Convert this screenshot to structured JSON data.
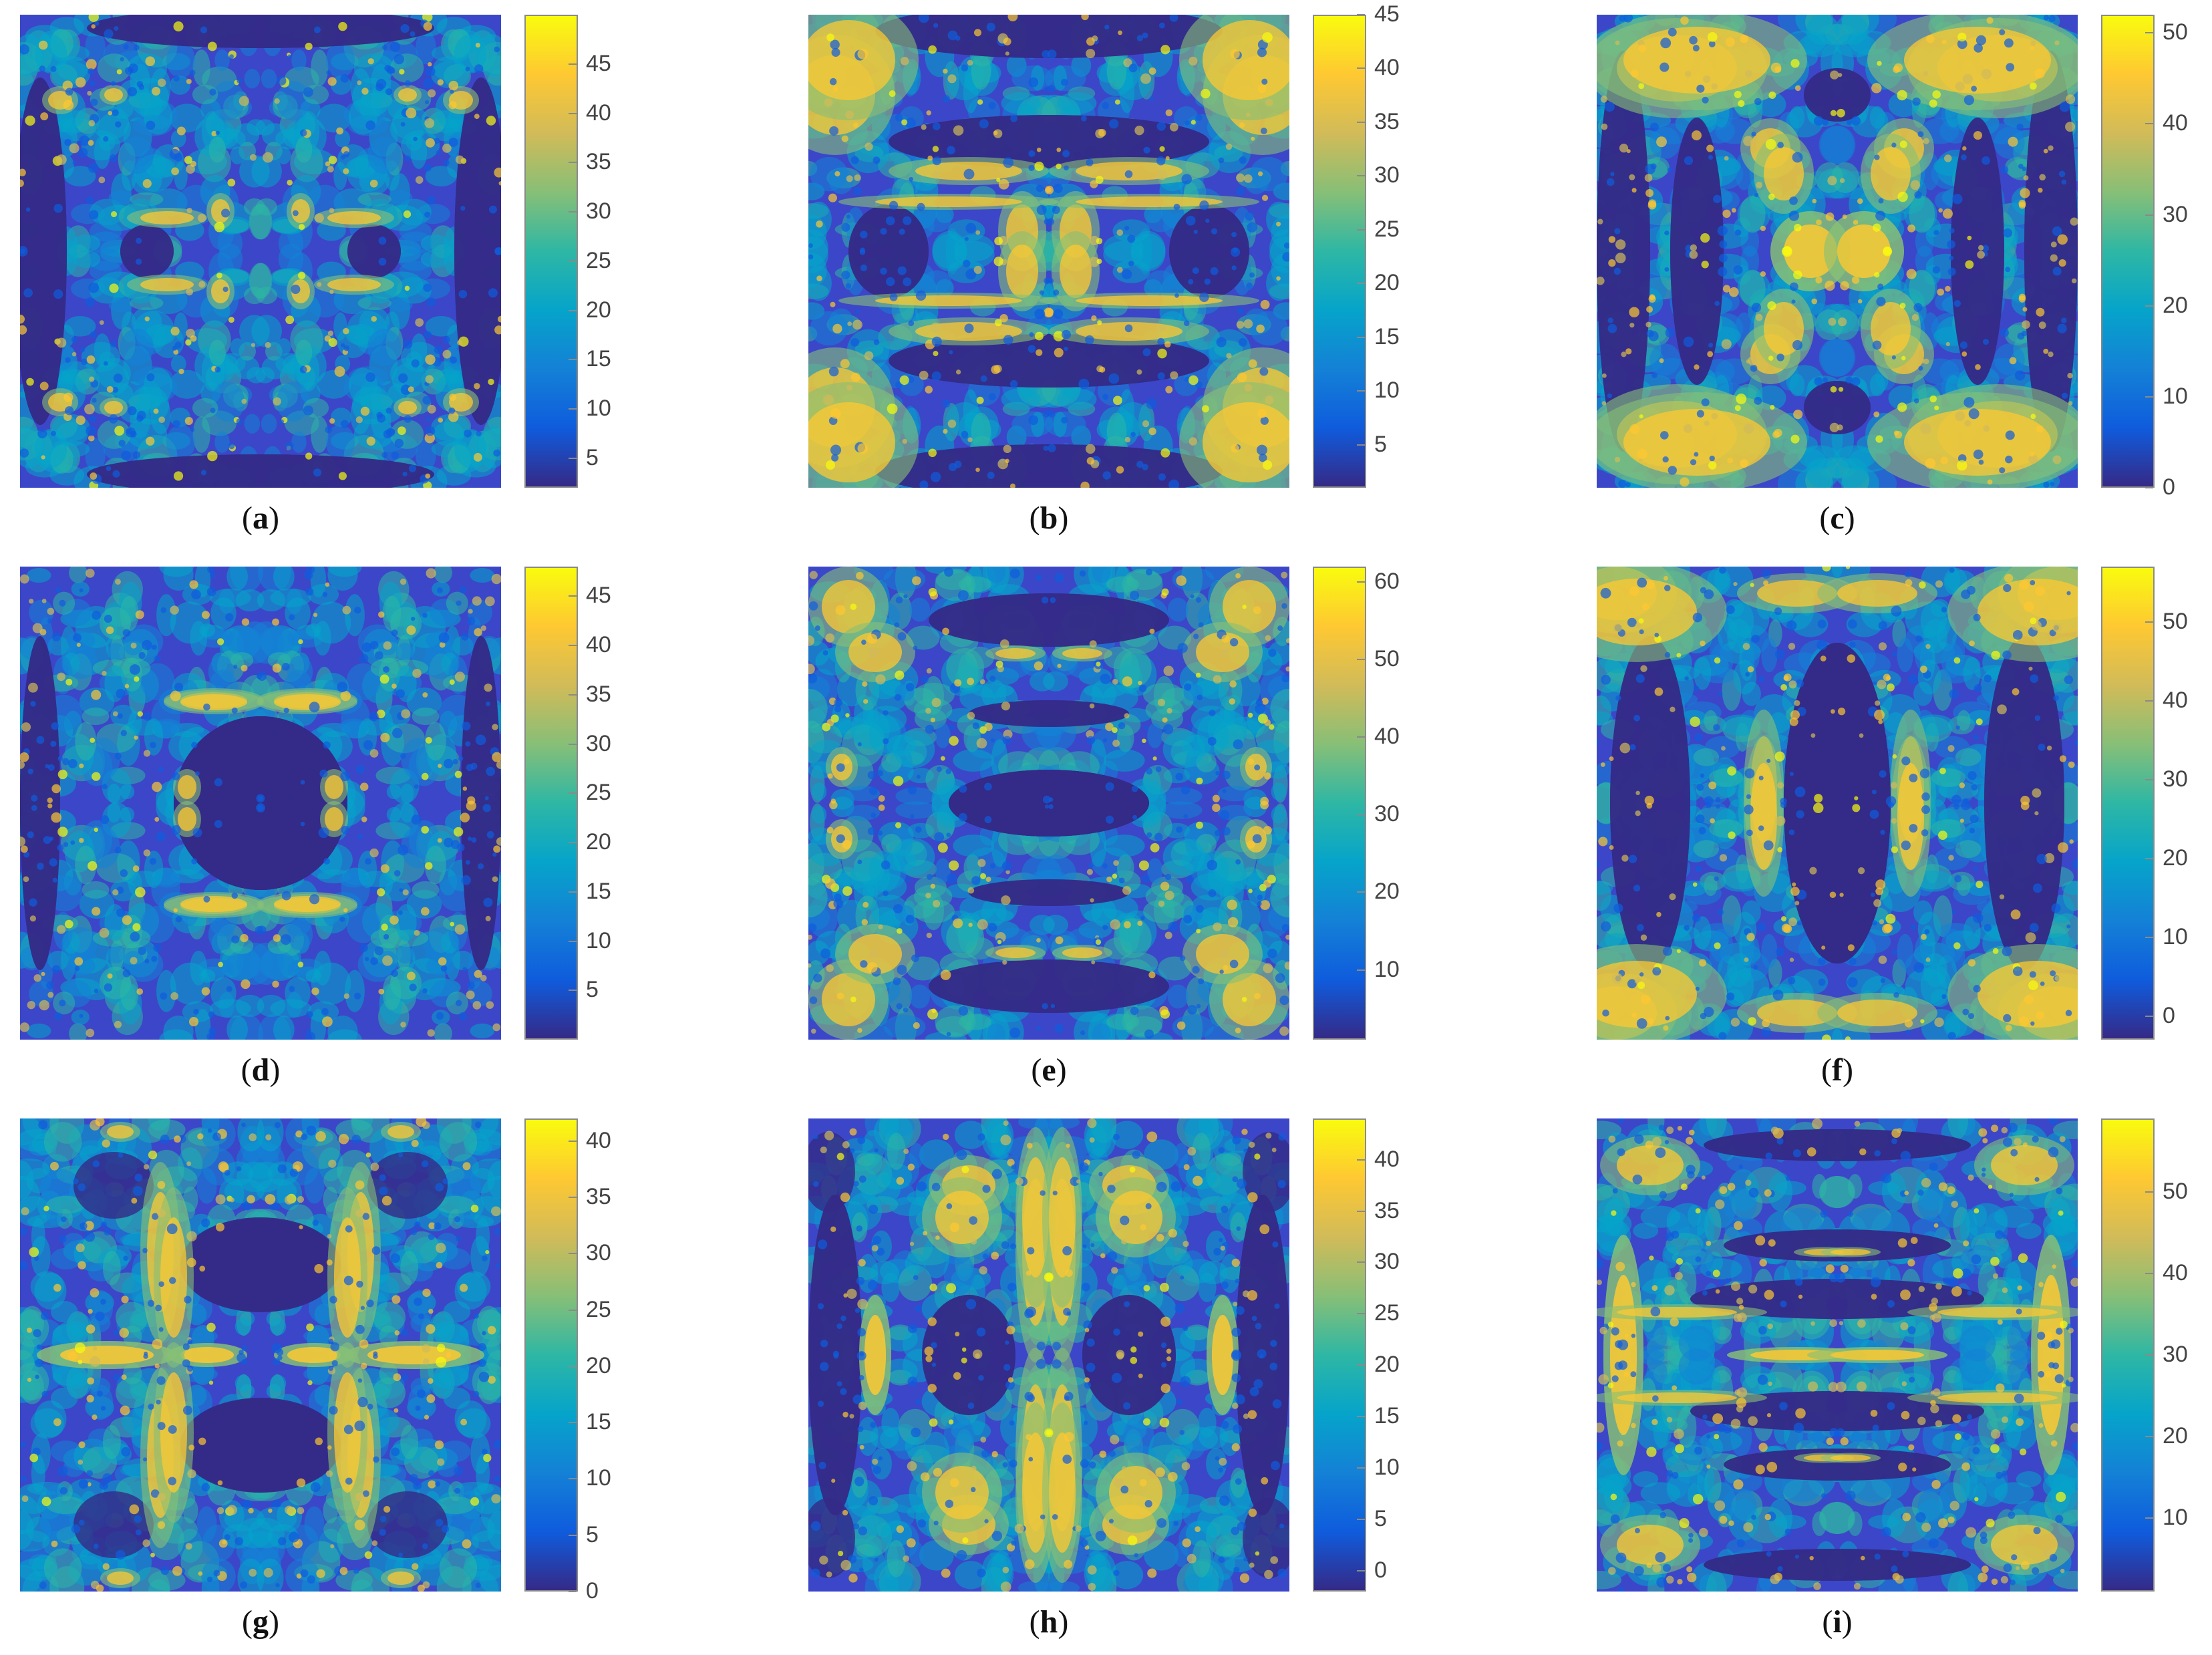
{
  "colormap": [
    "#352a87",
    "#0f5cdd",
    "#1481d6",
    "#06a4ca",
    "#2eb7a4",
    "#87bf77",
    "#d1bb59",
    "#fec832",
    "#f9fb0e"
  ],
  "chart_data": [
    {
      "id": "a",
      "label_prefix": "(",
      "letter": "a",
      "label_suffix": ")",
      "type": "heatmap",
      "clim": [
        2,
        50
      ],
      "ticks": [
        5,
        10,
        15,
        20,
        25,
        30,
        35,
        40,
        45
      ],
      "pattern": "central-oval-dark-sides"
    },
    {
      "id": "b",
      "label_prefix": "(",
      "letter": "b",
      "label_suffix": ")",
      "type": "heatmap",
      "clim": [
        1,
        45
      ],
      "ticks": [
        5,
        10,
        15,
        20,
        25,
        30,
        35,
        40,
        45
      ],
      "pattern": "dark-top-bottom-bright-corners"
    },
    {
      "id": "c",
      "label_prefix": "(",
      "letter": "c",
      "label_suffix": ")",
      "type": "heatmap",
      "clim": [
        0,
        52
      ],
      "ticks": [
        0,
        10,
        20,
        30,
        40,
        50
      ],
      "pattern": "vertical-dark-sides-bright-grid"
    },
    {
      "id": "d",
      "label_prefix": "(",
      "letter": "d",
      "label_suffix": ")",
      "type": "heatmap",
      "clim": [
        0,
        48
      ],
      "ticks": [
        5,
        10,
        15,
        20,
        25,
        30,
        35,
        40,
        45
      ],
      "pattern": "dark-center-ring"
    },
    {
      "id": "e",
      "label_prefix": "(",
      "letter": "e",
      "label_suffix": ")",
      "type": "heatmap",
      "clim": [
        1,
        62
      ],
      "ticks": [
        10,
        20,
        30,
        40,
        50,
        60
      ],
      "pattern": "horizontal-dark-bands"
    },
    {
      "id": "f",
      "label_prefix": "(",
      "letter": "f",
      "label_suffix": ")",
      "type": "heatmap",
      "clim": [
        -3,
        57
      ],
      "ticks": [
        0,
        10,
        20,
        30,
        40,
        50
      ],
      "pattern": "vertical-dark-ellipse"
    },
    {
      "id": "g",
      "label_prefix": "(",
      "letter": "g",
      "label_suffix": ")",
      "type": "heatmap",
      "clim": [
        0,
        42
      ],
      "ticks": [
        0,
        5,
        10,
        15,
        20,
        25,
        30,
        35,
        40
      ],
      "pattern": "bright-ring-two-lobes"
    },
    {
      "id": "h",
      "label_prefix": "(",
      "letter": "h",
      "label_suffix": ")",
      "type": "heatmap",
      "clim": [
        -2,
        44
      ],
      "ticks": [
        0,
        5,
        10,
        15,
        20,
        25,
        30,
        35,
        40
      ],
      "pattern": "bright-vertical-network"
    },
    {
      "id": "i",
      "label_prefix": "(",
      "letter": "i",
      "label_suffix": ")",
      "type": "heatmap",
      "clim": [
        1,
        59
      ],
      "ticks": [
        10,
        20,
        30,
        40,
        50
      ],
      "pattern": "horizontal-stripes-bright-center"
    }
  ]
}
